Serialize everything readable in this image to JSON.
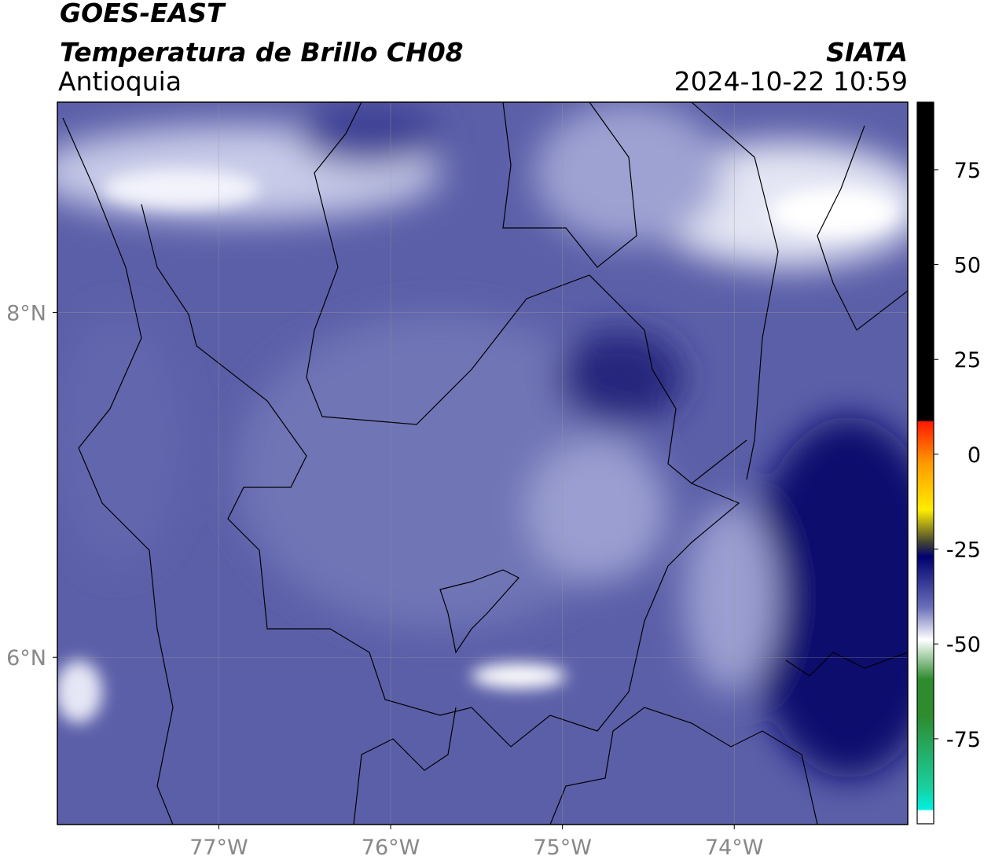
{
  "header": {
    "satellite": "GOES-EAST",
    "product": "Temperatura de Brillo CH08",
    "region": "Antioquia",
    "source": "SIATA",
    "datetime": "2024-10-22 10:59"
  },
  "map": {
    "xlim": [
      -77.94,
      -72.99
    ],
    "ylim": [
      5.03,
      9.22
    ],
    "xticks": [
      {
        "value": -77,
        "label": "77°W"
      },
      {
        "value": -76,
        "label": "76°W"
      },
      {
        "value": -75,
        "label": "75°W"
      },
      {
        "value": -74,
        "label": "74°W"
      }
    ],
    "yticks": [
      {
        "value": 8,
        "label": "8°N"
      },
      {
        "value": 6,
        "label": "6°N"
      }
    ],
    "grid": true
  },
  "colorbar": {
    "lim": [
      -97.4,
      92.8
    ],
    "ticks": [
      75,
      50,
      25,
      0,
      -25,
      -50,
      -75
    ]
  }
}
